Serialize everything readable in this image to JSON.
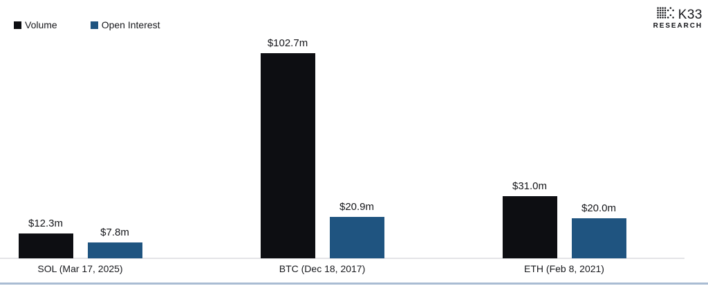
{
  "brand": {
    "name": "K33",
    "sub": "RESEARCH"
  },
  "legend": [
    {
      "label": "Volume",
      "color": "#0d0e12"
    },
    {
      "label": "Open Interest",
      "color": "#1f5480"
    }
  ],
  "chart_data": {
    "type": "bar",
    "title": "",
    "categories": [
      "SOL (Mar 17, 2025)",
      "BTC (Dec 18, 2017)",
      "ETH (Feb 8, 2021)"
    ],
    "series": [
      {
        "name": "Volume",
        "color": "#0d0e12",
        "values": [
          12.3,
          102.7,
          31.0
        ],
        "value_labels": [
          "$12.3m",
          "$102.7m",
          "$31.0m"
        ]
      },
      {
        "name": "Open Interest",
        "color": "#1f5480",
        "values": [
          7.8,
          20.9,
          20.0
        ],
        "value_labels": [
          "$7.8m",
          "$20.9m",
          "$20.0m"
        ]
      }
    ],
    "unit": "$m",
    "xlabel": "",
    "ylabel": "",
    "ylim": [
      0,
      110
    ],
    "grid": false,
    "y_axis_visible": false,
    "legend_position": "top-left"
  },
  "colors": {
    "background": "#ffffff",
    "axis_line": "#e4e4e7",
    "bottom_rule": "#a9bcd3",
    "text": "#16171b"
  }
}
